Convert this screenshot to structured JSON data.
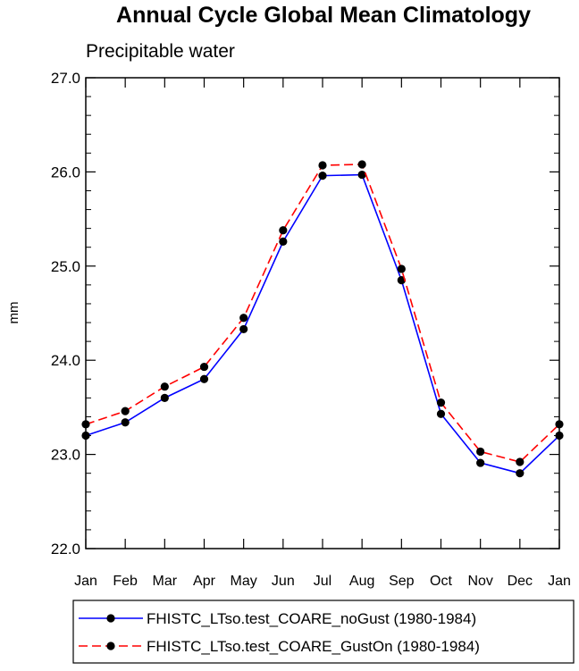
{
  "chart_data": {
    "type": "line",
    "title": "Annual Cycle Global Mean Climatology",
    "subtitle": "Precipitable water",
    "xlabel": "",
    "ylabel": "mm",
    "categories": [
      "Jan",
      "Feb",
      "Mar",
      "Apr",
      "May",
      "Jun",
      "Jul",
      "Aug",
      "Sep",
      "Oct",
      "Nov",
      "Dec",
      "Jan"
    ],
    "ylim": [
      22.0,
      27.0
    ],
    "yticks": [
      "22.0",
      "23.0",
      "24.0",
      "25.0",
      "26.0",
      "27.0"
    ],
    "legend_position": "bottom",
    "series": [
      {
        "name": "FHISTC_LTso.test_COARE_noGust (1980-1984)",
        "color": "#0000ff",
        "dash": "solid",
        "values": [
          23.2,
          23.34,
          23.6,
          23.8,
          24.33,
          25.26,
          25.96,
          25.97,
          24.85,
          23.43,
          22.91,
          22.8,
          23.2
        ]
      },
      {
        "name": "FHISTC_LTso.test_COARE_GustOn (1980-1984)",
        "color": "#ff0000",
        "dash": "dashed",
        "values": [
          23.32,
          23.46,
          23.72,
          23.93,
          24.45,
          25.38,
          26.07,
          26.08,
          24.97,
          23.55,
          23.03,
          22.92,
          23.32
        ]
      }
    ]
  }
}
